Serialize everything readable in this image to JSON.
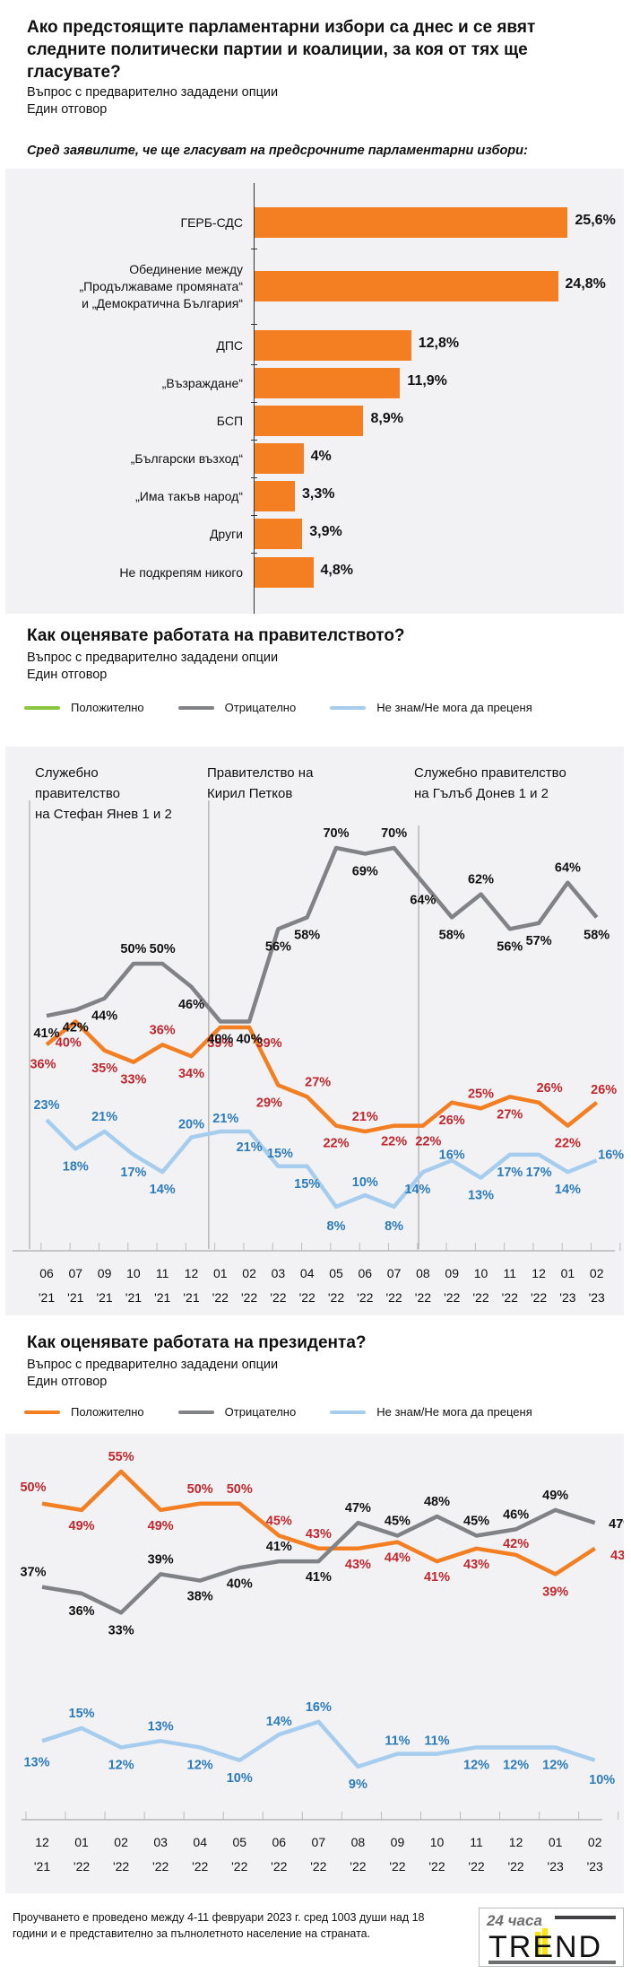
{
  "section1": {
    "title": "Ако предстоящите парламентарни избори са днес и се явят следните политически партии и коалиции, за коя от тях ще гласувате?",
    "subtitle1": "Въпрос с предварително зададени опции",
    "subtitle2": "Един отговор",
    "note": "Сред заявилите, че ще гласуват на предсрочните парламентарни избори:"
  },
  "section2": {
    "title": "Как оценявате работата на правителството?",
    "subtitle1": "Въпрос с предварително зададени опции",
    "subtitle2": "Един отговор",
    "legend": [
      {
        "label": "Положително",
        "color": "#8cc63f"
      },
      {
        "label": "Отрицателно",
        "color": "#808285"
      },
      {
        "label": "Не знам/Не мога да преценя",
        "color": "#a7cdee"
      }
    ]
  },
  "section3": {
    "title": "Как оценявате работата на президента?",
    "subtitle1": "Въпрос с предварително зададени опции",
    "subtitle2": "Един отговор",
    "legend": [
      {
        "label": "Положително",
        "color": "#f37f22"
      },
      {
        "label": "Отрицателно",
        "color": "#808285"
      },
      {
        "label": "Не знам/Не мога да преценя",
        "color": "#a7cdee"
      }
    ]
  },
  "footer": {
    "text": "Проучването е проведено между 4-11 февруари 2023 г. сред 1003 души над 18 години и е представително за пълнолетното население на страната.",
    "logo_top": "24 часа",
    "logo_main": "TREND"
  },
  "chart_data": [
    {
      "type": "bar",
      "orientation": "horizontal",
      "title": "Ако предстоящите парламентарни избори са днес и се явят следните политически партии и коалиции, за коя от тях ще гласувате?",
      "categories": [
        [
          "ГЕРБ-СДС"
        ],
        [
          "Обединение между",
          "„Продължаваме промяната“",
          "и „Демократична България“"
        ],
        [
          "ДПС"
        ],
        [
          "„Възраждане“"
        ],
        [
          "БСП"
        ],
        [
          "„Български възход“"
        ],
        [
          "„Има такъв народ“"
        ],
        [
          "Други"
        ],
        [
          "Не подкрепям никого"
        ]
      ],
      "values": [
        25.6,
        24.8,
        12.8,
        11.9,
        8.9,
        4,
        3.3,
        3.9,
        4.8
      ],
      "value_labels": [
        "25,6%",
        "24,8%",
        "12,8%",
        "11,9%",
        "8,9%",
        "4%",
        "3,3%",
        "3,9%",
        "4,8%"
      ],
      "bar_color": "#f37f22",
      "xlim": [
        0,
        27
      ]
    },
    {
      "type": "line",
      "title": "Как оценявате работата на правителството?",
      "x_months": [
        "06",
        "07",
        "09",
        "10",
        "11",
        "12",
        "01",
        "02",
        "03",
        "04",
        "05",
        "06",
        "07",
        "08",
        "09",
        "10",
        "11",
        "12",
        "01",
        "02"
      ],
      "x_years": [
        "'21",
        "'21",
        "'21",
        "'21",
        "'21",
        "'21",
        "'22",
        "'22",
        "'22",
        "'22",
        "'22",
        "'22",
        "'22",
        "'22",
        "'22",
        "'22",
        "'22",
        "'22",
        "'23",
        "'23"
      ],
      "series": [
        {
          "name": "Положително",
          "color": "#f37f22",
          "label_color": "#c1272d",
          "values": [
            36,
            40,
            35,
            33,
            36,
            34,
            39,
            39,
            29,
            27,
            22,
            21,
            22,
            22,
            26,
            25,
            27,
            26,
            22,
            26
          ]
        },
        {
          "name": "Отрицателно",
          "color": "#808285",
          "label_color": "#111111",
          "values": [
            41,
            42,
            44,
            50,
            50,
            46,
            40,
            40,
            56,
            58,
            70,
            69,
            70,
            64,
            58,
            62,
            56,
            57,
            64,
            58
          ]
        },
        {
          "name": "Не знам/Не мога да преценя",
          "color": "#a7cdee",
          "label_color": "#2b7bbd",
          "values": [
            23,
            18,
            21,
            17,
            14,
            20,
            21,
            21,
            15,
            15,
            8,
            10,
            8,
            14,
            16,
            13,
            17,
            17,
            14,
            16
          ]
        }
      ],
      "periods": [
        {
          "label": "Служебно правителство на Стефан Янев 1 и 2",
          "lines": [
            "Служебно",
            "правителство",
            "на Стефан Янев 1 и 2"
          ],
          "start_index": 0
        },
        {
          "label": "Правителство на Кирил Петков",
          "lines": [
            "Правителство на",
            "Кирил Петков"
          ],
          "start_index": 6
        },
        {
          "label": "Служебно правителство на Гълъб Донев 1 и 2",
          "lines": [
            "Служебно правителство",
            "на Гълъб Донев 1 и 2"
          ],
          "start_index": 13
        }
      ],
      "ylim": [
        0,
        75
      ]
    },
    {
      "type": "line",
      "title": "Как оценявате работата на президента?",
      "x_months": [
        "12",
        "01",
        "02",
        "03",
        "04",
        "05",
        "06",
        "07",
        "08",
        "09",
        "10",
        "11",
        "12",
        "01",
        "02"
      ],
      "x_years": [
        "'21",
        "'22",
        "'22",
        "'22",
        "'22",
        "'22",
        "'22",
        "'22",
        "'22",
        "'22",
        "'22",
        "'22",
        "'22",
        "'23",
        "'23"
      ],
      "series": [
        {
          "name": "Положително",
          "color": "#f37f22",
          "label_color": "#c1272d",
          "values": [
            50,
            49,
            55,
            49,
            50,
            50,
            45,
            43,
            43,
            44,
            41,
            43,
            42,
            39,
            43
          ]
        },
        {
          "name": "Отрицателно",
          "color": "#808285",
          "label_color": "#111111",
          "values": [
            37,
            36,
            33,
            39,
            38,
            40,
            41,
            41,
            47,
            45,
            48,
            45,
            46,
            49,
            47
          ]
        },
        {
          "name": "Не знам/Не мога да преценя",
          "color": "#a7cdee",
          "label_color": "#2b7bbd",
          "values": [
            13,
            15,
            12,
            13,
            12,
            10,
            14,
            16,
            9,
            11,
            11,
            12,
            12,
            12,
            10
          ]
        }
      ],
      "ylim": [
        0,
        60
      ]
    }
  ]
}
